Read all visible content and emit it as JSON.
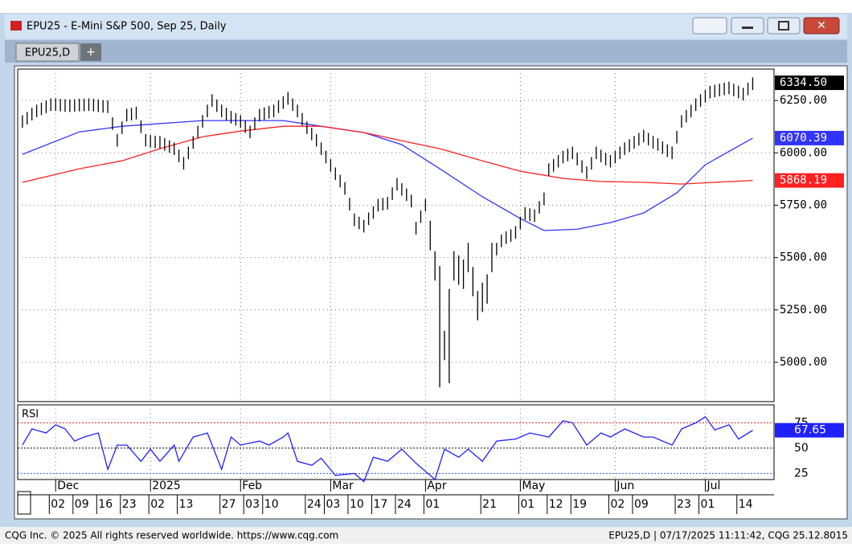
{
  "window": {
    "title": "EPU25 - E-Mini S&P 500, Sep 25, Daily",
    "tab": "EPU25,D",
    "tab_add": "+"
  },
  "chart_data": {
    "type": "ohlc",
    "high": [
      6180,
      6195,
      6215,
      6230,
      6240,
      6250,
      6260,
      6260,
      6258,
      6256,
      6255,
      6256,
      6258,
      6259,
      6260,
      6258,
      6255,
      6252,
      6250,
      6170,
      6090,
      6150,
      6210,
      6215,
      6220,
      6155,
      6090,
      6085,
      6082,
      6080,
      6070,
      6060,
      6050,
      6015,
      5980,
      6030,
      6080,
      6130,
      6180,
      6230,
      6280,
      6255,
      6230,
      6215,
      6200,
      6190,
      6180,
      6155,
      6130,
      6170,
      6210,
      6217,
      6224,
      6230,
      6250,
      6270,
      6290,
      6260,
      6230,
      6190,
      6150,
      6120,
      6090,
      6050,
      6010,
      5970,
      5930,
      5895,
      5860,
      5785,
      5710,
      5695,
      5680,
      5715,
      5745,
      5780,
      5785,
      5790,
      5835,
      5880,
      5855,
      5830,
      5800,
      5670,
      5725,
      5780,
      5675,
      5530,
      5460,
      5150,
      5350,
      5530,
      5510,
      5490,
      5570,
      5455,
      5340,
      5380,
      5420,
      5570,
      5570,
      5610,
      5625,
      5635,
      5650,
      5695,
      5740,
      5735,
      5730,
      5770,
      5810,
      5950,
      5970,
      5990,
      6010,
      6020,
      6030,
      6000,
      5965,
      5935,
      5980,
      6030,
      6015,
      6000,
      5990,
      6010,
      6030,
      6050,
      6065,
      6080,
      6095,
      6110,
      6095,
      6080,
      6070,
      6055,
      6040,
      6030,
      6105,
      6180,
      6205,
      6230,
      6260,
      6280,
      6300,
      6320,
      6325,
      6330,
      6335,
      6340,
      6330,
      6320,
      6310,
      6335,
      6360
    ],
    "low": [
      6120,
      6135,
      6155,
      6170,
      6180,
      6190,
      6200,
      6200,
      6198,
      6196,
      6195,
      6196,
      6198,
      6199,
      6200,
      6198,
      6195,
      6192,
      6190,
      6110,
      6030,
      6090,
      6150,
      6155,
      6160,
      6095,
      6030,
      6025,
      6022,
      6020,
      6010,
      6000,
      5990,
      5955,
      5920,
      5970,
      6020,
      6070,
      6120,
      6170,
      6220,
      6195,
      6170,
      6155,
      6140,
      6130,
      6120,
      6095,
      6070,
      6110,
      6150,
      6157,
      6164,
      6170,
      6190,
      6210,
      6230,
      6200,
      6170,
      6130,
      6090,
      6060,
      6030,
      5990,
      5950,
      5910,
      5870,
      5835,
      5800,
      5725,
      5650,
      5635,
      5620,
      5655,
      5685,
      5720,
      5725,
      5730,
      5775,
      5820,
      5795,
      5770,
      5740,
      5610,
      5665,
      5720,
      5535,
      5390,
      4880,
      5010,
      4900,
      5390,
      5370,
      5350,
      5430,
      5315,
      5200,
      5240,
      5280,
      5430,
      5510,
      5550,
      5565,
      5575,
      5590,
      5635,
      5680,
      5675,
      5670,
      5710,
      5750,
      5890,
      5910,
      5930,
      5950,
      5960,
      5970,
      5940,
      5905,
      5875,
      5920,
      5970,
      5955,
      5940,
      5930,
      5950,
      5970,
      5990,
      6005,
      6020,
      6035,
      6050,
      6035,
      6020,
      6010,
      5995,
      5980,
      5970,
      6045,
      6120,
      6145,
      6170,
      6200,
      6220,
      6240,
      6260,
      6265,
      6270,
      6275,
      6280,
      6270,
      6260,
      6250,
      6275,
      6300
    ],
    "color": "#000000",
    "last_price": {
      "value": 6334.5,
      "label": "6334.50"
    },
    "series": [
      {
        "color": "#3333ff",
        "x": [
          0,
          12,
          21,
          38,
          55,
          63,
          72,
          80,
          88,
          97,
          105,
          110,
          117,
          124,
          131,
          138,
          144,
          154
        ],
        "values": [
          5993,
          6100,
          6127,
          6154,
          6154,
          6127,
          6097,
          6039,
          5924,
          5790,
          5686,
          5629,
          5635,
          5667,
          5713,
          5809,
          5943,
          6070.39
        ]
      },
      {
        "color": "#ff2020",
        "x": [
          0,
          12,
          21,
          29,
          38,
          46,
          55,
          63,
          72,
          80,
          88,
          97,
          105,
          114,
          122,
          131,
          139,
          154
        ],
        "values": [
          5859,
          5924,
          5962,
          6020,
          6077,
          6104,
          6127,
          6127,
          6097,
          6058,
          6020,
          5962,
          5912,
          5878,
          5863,
          5859,
          5851,
          5868.19
        ]
      }
    ],
    "xlim": [
      -1,
      158.5
    ],
    "ylim": [
      4812,
      6400
    ],
    "yticks": [
      {
        "value": 5000,
        "label": "5000.00"
      },
      {
        "value": 5250,
        "label": "5250.00"
      },
      {
        "value": 5500,
        "label": "5500.00"
      },
      {
        "value": 5750,
        "label": "5750.00"
      },
      {
        "value": 6000,
        "label": "6000.00"
      },
      {
        "value": 6250,
        "label": "6250.00"
      }
    ],
    "grid": true,
    "months": {
      "x": [
        7,
        27,
        46,
        65,
        85,
        105,
        125,
        144
      ],
      "labels": [
        "Dec",
        "2025",
        "Feb",
        "Mar",
        "Apr",
        "May",
        "Jun",
        "Jul"
      ]
    },
    "days": {
      "x": [
        6,
        11,
        16,
        21,
        27,
        33,
        42,
        47,
        51,
        60,
        64,
        69,
        74,
        79,
        85,
        97,
        105,
        111,
        116,
        124,
        129,
        138,
        143,
        151
      ],
      "labels": [
        "02",
        "09",
        "16",
        "23",
        "02",
        "13",
        "27",
        "03",
        "10",
        "24",
        "03",
        "10",
        "17",
        "24",
        "01",
        "21",
        "01",
        "12",
        "19",
        "02",
        "09",
        "23",
        "01",
        "14"
      ]
    },
    "rsi": {
      "title": "RSI",
      "color": "#2020ff",
      "x": [
        0,
        2,
        5,
        7,
        9,
        11,
        13,
        16,
        18,
        20,
        22,
        25,
        27,
        29,
        32,
        33,
        36,
        39,
        42,
        44,
        46,
        50,
        52,
        55,
        56,
        58,
        61,
        63,
        66,
        70,
        72,
        74,
        77,
        80,
        83,
        87,
        89,
        92,
        94,
        97,
        100,
        104,
        107,
        111,
        114,
        116,
        119,
        122,
        124,
        127,
        131,
        133,
        137,
        139,
        142,
        144,
        146,
        149,
        151,
        154
      ],
      "values": [
        53,
        69,
        65,
        73,
        69,
        57,
        61,
        65,
        29,
        53,
        53,
        37,
        49,
        37,
        53,
        37,
        61,
        65,
        29,
        61,
        53,
        57,
        53,
        61,
        65,
        37,
        33,
        40,
        23,
        25,
        17,
        41,
        37,
        49,
        35,
        19,
        49,
        41,
        49,
        37,
        57,
        59,
        65,
        61,
        77,
        75,
        53,
        65,
        61,
        69,
        61,
        61,
        53,
        69,
        75,
        81,
        68,
        73,
        59,
        67.65
      ],
      "ylim": [
        15,
        92
      ],
      "yticks": [
        25,
        50,
        75
      ],
      "level_colors": [
        "#3355ff",
        "#000000",
        "#dd2222"
      ]
    }
  },
  "footer": {
    "left": "CQG Inc. © 2025 All rights reserved worldwide. https://www.cqg.com",
    "right": "EPU25,D | 07/17/2025 11:11:42, CQG 25.12.8015"
  }
}
